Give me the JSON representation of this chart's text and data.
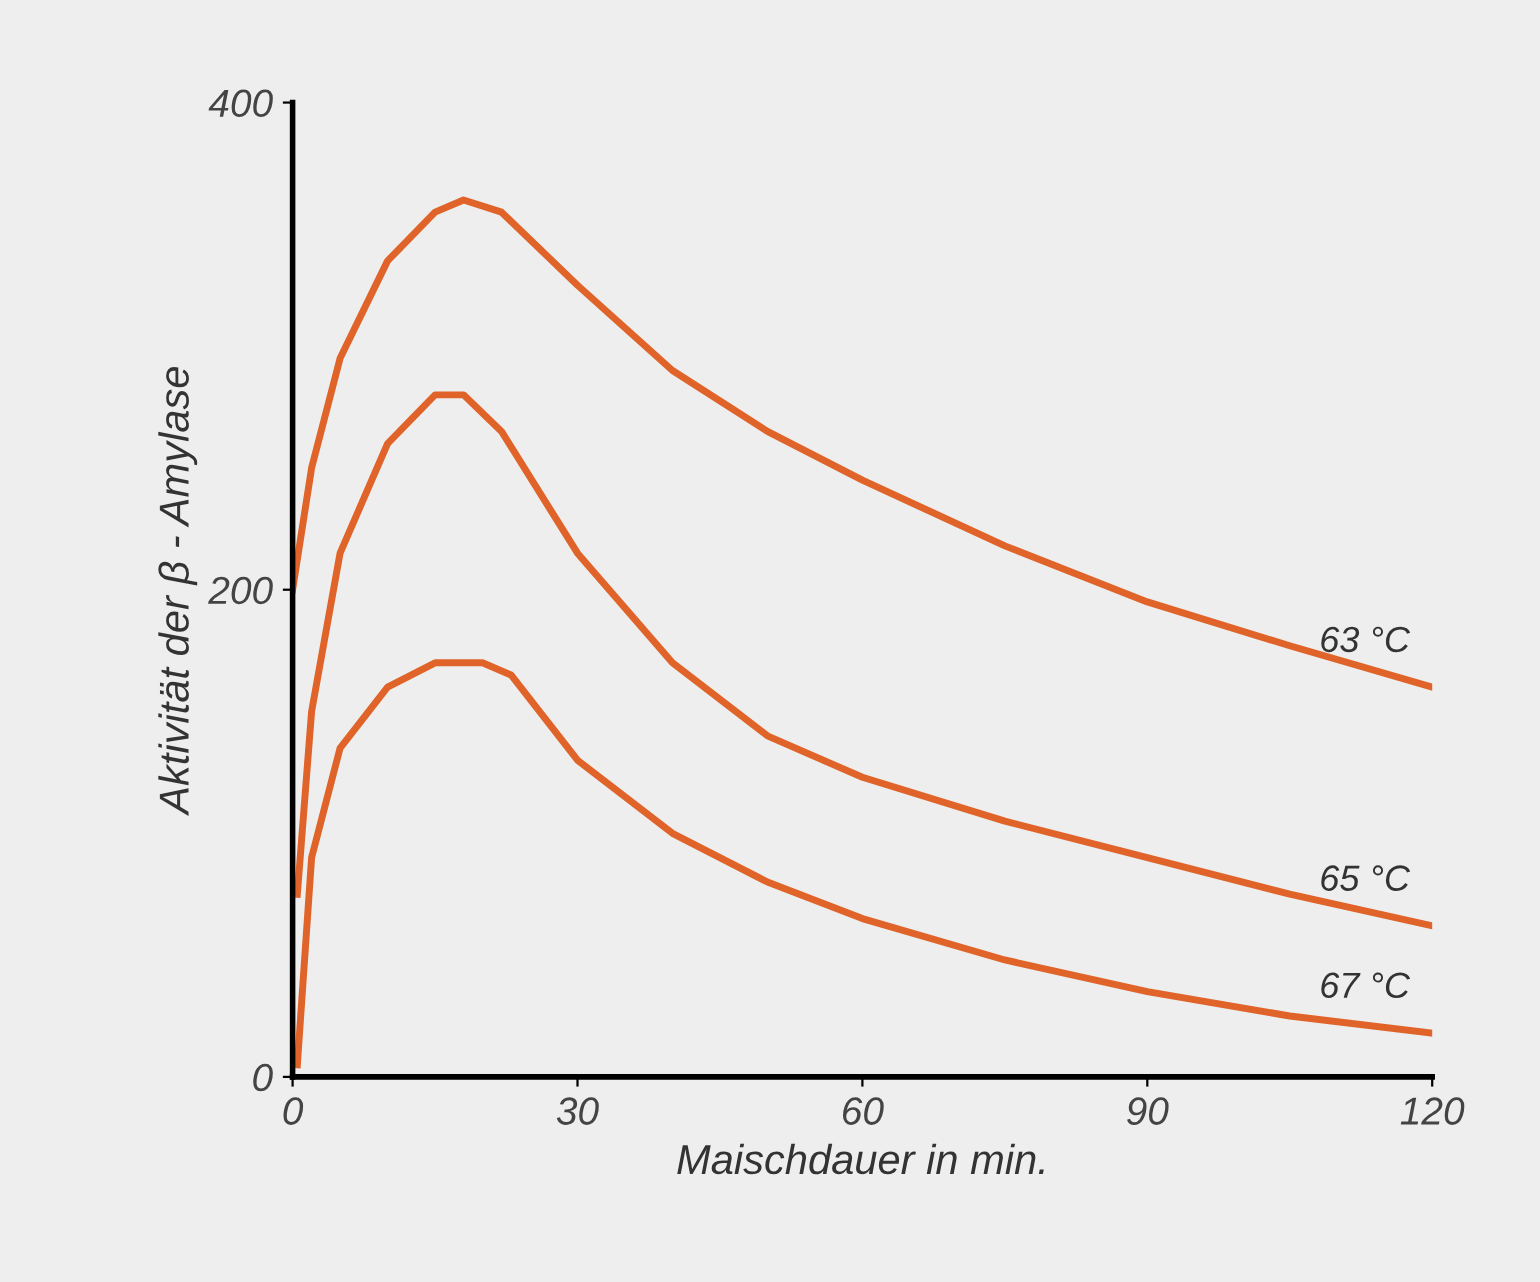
{
  "chart_data": {
    "type": "line",
    "xlabel": "Maischdauer in min.",
    "ylabel": "Aktivität der β - Amylase",
    "xlim": [
      0,
      120
    ],
    "ylim": [
      0,
      400
    ],
    "xticks": [
      0,
      30,
      60,
      90,
      120
    ],
    "yticks": [
      0,
      200,
      400
    ],
    "grid": false,
    "legend": false,
    "marker": "none",
    "line_style": "solid",
    "series": [
      {
        "name": "63 °C",
        "color": "#e0642a",
        "x": [
          0,
          2,
          5,
          10,
          15,
          18,
          22,
          30,
          40,
          50,
          60,
          75,
          90,
          105,
          120
        ],
        "values": [
          200,
          250,
          295,
          335,
          355,
          360,
          355,
          325,
          290,
          265,
          245,
          218,
          195,
          177,
          160
        ]
      },
      {
        "name": "65 °C",
        "color": "#e0642a",
        "x": [
          0.5,
          2,
          5,
          10,
          15,
          18,
          22,
          30,
          40,
          50,
          60,
          75,
          90,
          105,
          120
        ],
        "values": [
          75,
          150,
          215,
          260,
          280,
          280,
          265,
          215,
          170,
          140,
          123,
          105,
          90,
          75,
          62
        ]
      },
      {
        "name": "67 °C",
        "color": "#e0642a",
        "x": [
          0.5,
          2,
          5,
          10,
          15,
          20,
          23,
          30,
          40,
          50,
          60,
          75,
          90,
          105,
          120
        ],
        "values": [
          5,
          90,
          135,
          160,
          170,
          170,
          165,
          130,
          100,
          80,
          65,
          48,
          35,
          25,
          18
        ]
      }
    ]
  }
}
